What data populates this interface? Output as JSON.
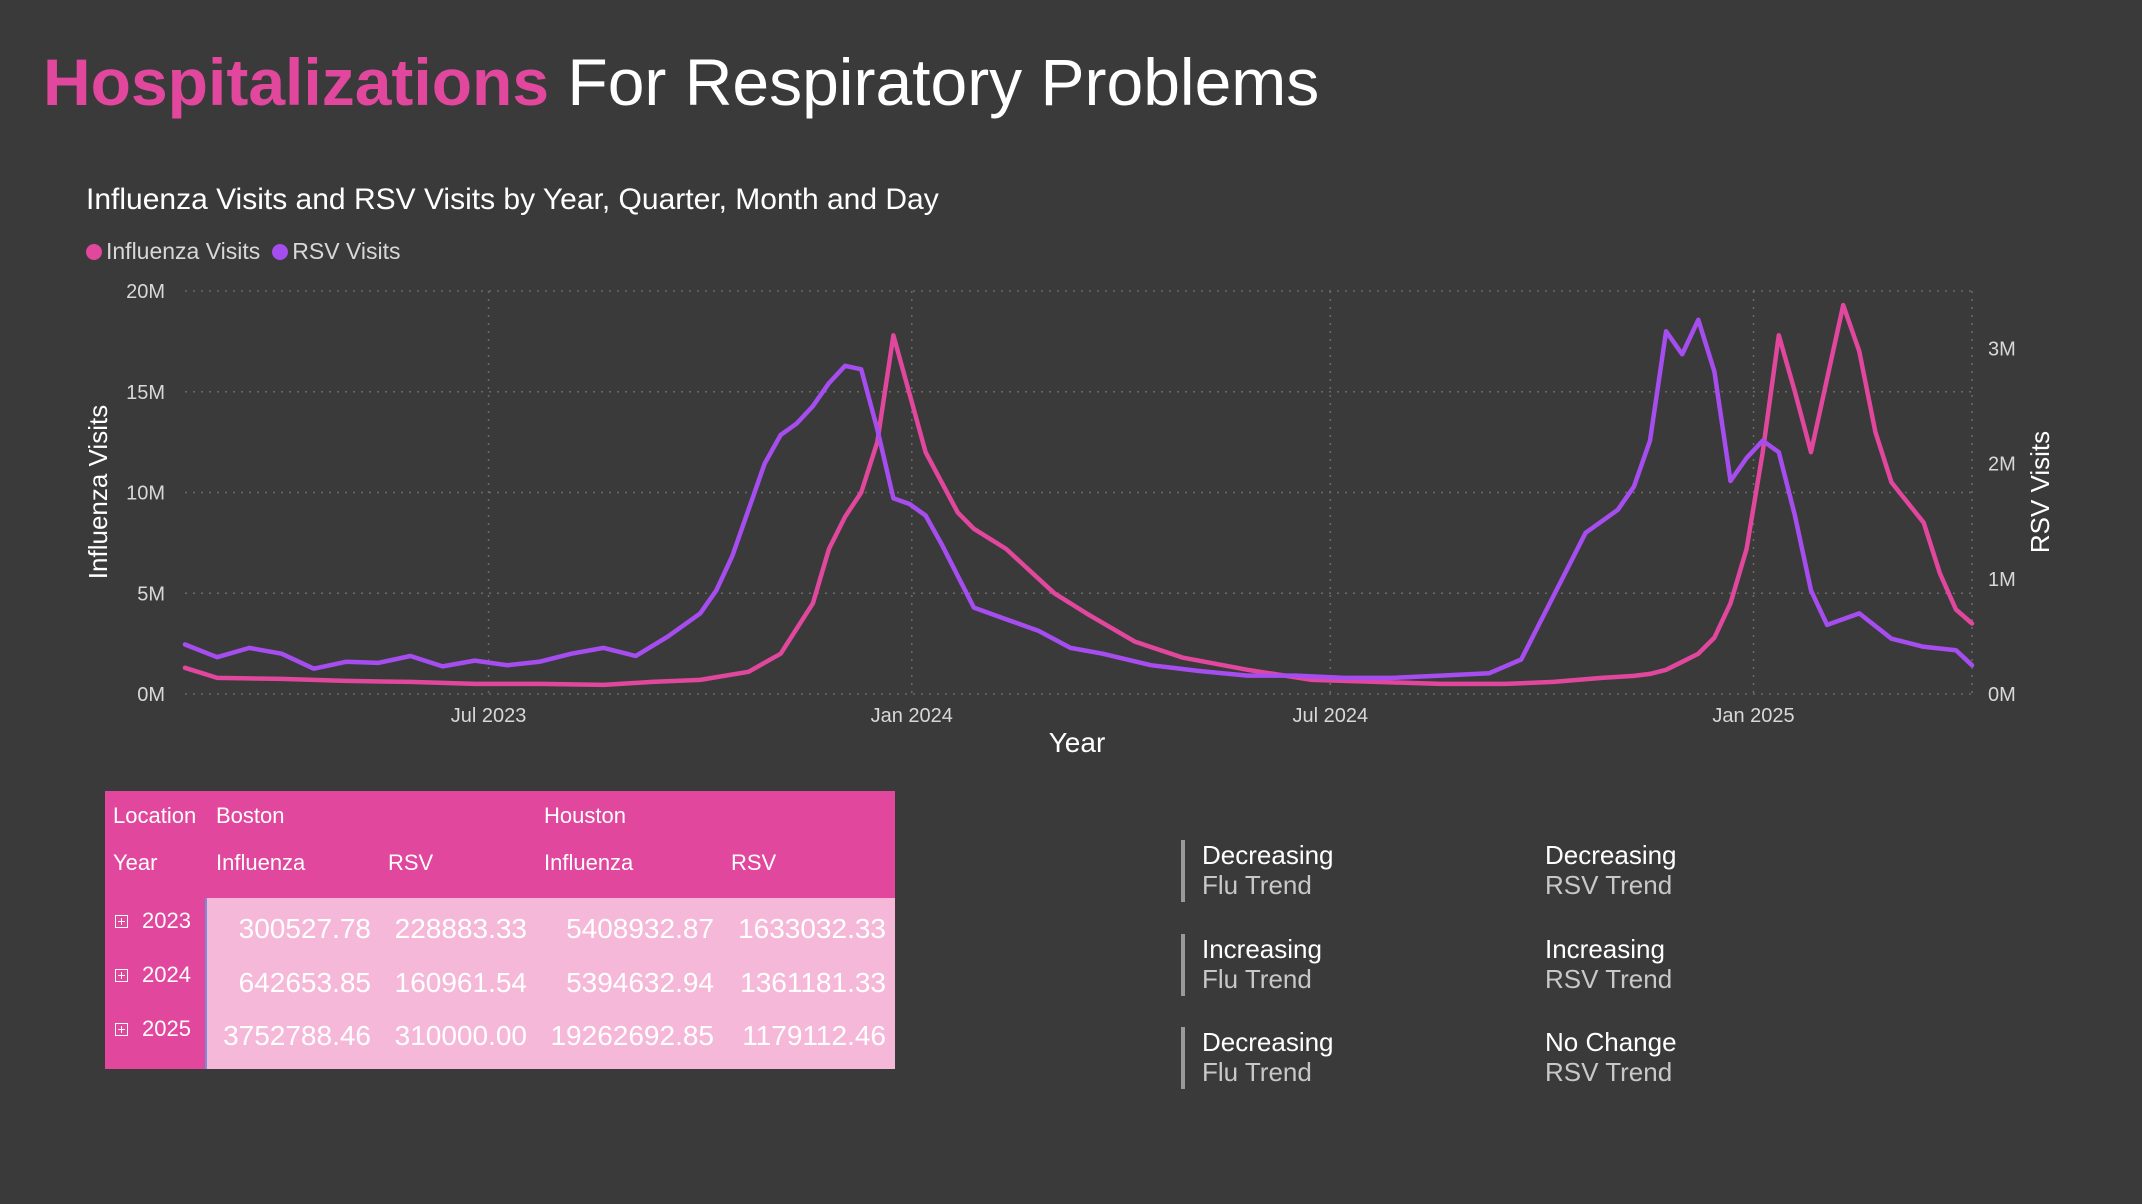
{
  "page_title": {
    "highlight": "Hospitalizations",
    "rest": " For Respiratory Problems"
  },
  "chart_data": {
    "type": "line",
    "title": "Influenza Visits and RSV Visits by Year, Quarter, Month and Day",
    "xlabel": "Year",
    "y_left_label": "Influenza Visits",
    "y_right_label": "RSV Visits",
    "x_tick_labels": [
      "Jul 2023",
      "Jan 2024",
      "Jul 2024",
      "Jan 2025"
    ],
    "x_range": [
      "2023-02-19",
      "2025-04-06"
    ],
    "x_ticks": [
      "2023-07-01",
      "2024-01-01",
      "2024-07-01",
      "2025-01-01"
    ],
    "y_left_ticks": [
      "0M",
      "5M",
      "10M",
      "15M",
      "20M"
    ],
    "y_left_range": [
      0,
      20000000
    ],
    "y_right_ticks": [
      "0M",
      "1M",
      "2M",
      "3M"
    ],
    "y_right_range": [
      0,
      3500000
    ],
    "grid": true,
    "legend_placement": "top-left",
    "series": [
      {
        "name": "Influenza Visits",
        "axis": "left",
        "color": "#e0479d",
        "x": [
          "2023-02-19",
          "2023-03-05",
          "2023-04-02",
          "2023-04-30",
          "2023-05-28",
          "2023-06-25",
          "2023-07-23",
          "2023-08-20",
          "2023-09-10",
          "2023-10-01",
          "2023-10-22",
          "2023-11-05",
          "2023-11-19",
          "2023-11-26",
          "2023-12-03",
          "2023-12-10",
          "2023-12-17",
          "2023-12-24",
          "2024-01-07",
          "2024-01-21",
          "2024-01-28",
          "2024-02-11",
          "2024-03-03",
          "2024-03-17",
          "2024-04-07",
          "2024-04-28",
          "2024-05-26",
          "2024-06-23",
          "2024-07-21",
          "2024-08-18",
          "2024-09-15",
          "2024-10-06",
          "2024-10-27",
          "2024-11-10",
          "2024-11-17",
          "2024-11-24",
          "2024-12-01",
          "2024-12-08",
          "2024-12-15",
          "2024-12-22",
          "2024-12-29",
          "2025-01-05",
          "2025-01-12",
          "2025-01-19",
          "2025-01-26",
          "2025-02-09",
          "2025-02-16",
          "2025-02-23",
          "2025-03-02",
          "2025-03-16",
          "2025-03-23",
          "2025-03-30",
          "2025-04-06"
        ],
        "values": [
          1300000,
          800000,
          750000,
          650000,
          600000,
          500000,
          500000,
          450000,
          600000,
          700000,
          1100000,
          2000000,
          4500000,
          7200000,
          8800000,
          10000000,
          12500000,
          17800000,
          12000000,
          9000000,
          8200000,
          7200000,
          5000000,
          4000000,
          2600000,
          1800000,
          1200000,
          700000,
          600000,
          500000,
          500000,
          600000,
          800000,
          900000,
          1000000,
          1200000,
          1600000,
          2000000,
          2800000,
          4500000,
          7200000,
          12000000,
          17800000,
          15000000,
          12000000,
          19300000,
          17000000,
          13000000,
          10500000,
          8500000,
          6000000,
          4200000,
          3500000
        ]
      },
      {
        "name": "RSV Visits",
        "axis": "right",
        "color": "#a64df0",
        "x": [
          "2023-02-19",
          "2023-03-05",
          "2023-03-19",
          "2023-04-02",
          "2023-04-16",
          "2023-04-30",
          "2023-05-14",
          "2023-05-28",
          "2023-06-11",
          "2023-06-25",
          "2023-07-09",
          "2023-07-23",
          "2023-08-06",
          "2023-08-20",
          "2023-09-03",
          "2023-09-17",
          "2023-10-01",
          "2023-10-08",
          "2023-10-15",
          "2023-10-22",
          "2023-10-29",
          "2023-11-05",
          "2023-11-12",
          "2023-11-19",
          "2023-11-26",
          "2023-12-03",
          "2023-12-10",
          "2023-12-17",
          "2023-12-24",
          "2023-12-31",
          "2024-01-07",
          "2024-01-14",
          "2024-01-28",
          "2024-02-11",
          "2024-02-25",
          "2024-03-10",
          "2024-03-24",
          "2024-04-14",
          "2024-05-05",
          "2024-05-26",
          "2024-06-16",
          "2024-07-07",
          "2024-07-28",
          "2024-08-18",
          "2024-09-08",
          "2024-09-22",
          "2024-10-06",
          "2024-10-20",
          "2024-10-27",
          "2024-11-03",
          "2024-11-10",
          "2024-11-17",
          "2024-11-24",
          "2024-12-01",
          "2024-12-08",
          "2024-12-15",
          "2024-12-22",
          "2024-12-29",
          "2025-01-05",
          "2025-01-12",
          "2025-01-19",
          "2025-01-26",
          "2025-02-02",
          "2025-02-16",
          "2025-03-02",
          "2025-03-16",
          "2025-03-30",
          "2025-04-06"
        ],
        "values": [
          430000,
          320000,
          400000,
          350000,
          220000,
          280000,
          270000,
          330000,
          240000,
          290000,
          250000,
          280000,
          350000,
          400000,
          330000,
          500000,
          700000,
          900000,
          1200000,
          1600000,
          2000000,
          2250000,
          2350000,
          2500000,
          2700000,
          2850000,
          2820000,
          2300000,
          1700000,
          1650000,
          1550000,
          1300000,
          750000,
          650000,
          550000,
          400000,
          350000,
          250000,
          200000,
          160000,
          160000,
          140000,
          140000,
          160000,
          180000,
          300000,
          850000,
          1400000,
          1500000,
          1600000,
          1800000,
          2200000,
          3150000,
          2950000,
          3250000,
          2800000,
          1850000,
          2050000,
          2200000,
          2100000,
          1550000,
          900000,
          600000,
          700000,
          480000,
          410000,
          380000,
          250000
        ]
      }
    ]
  },
  "matrix": {
    "header_row1": {
      "location_label": "Location",
      "col_groups": [
        "Boston",
        "Houston"
      ]
    },
    "header_row2": {
      "year_label": "Year",
      "cols": [
        "Influenza",
        "RSV",
        "Influenza",
        "RSV"
      ]
    },
    "rows": [
      {
        "year": "2023",
        "values": [
          "300527.78",
          "228883.33",
          "5408932.87",
          "1633032.33"
        ]
      },
      {
        "year": "2024",
        "values": [
          "642653.85",
          "160961.54",
          "5394632.94",
          "1361181.33"
        ]
      },
      {
        "year": "2025",
        "values": [
          "3752788.46",
          "310000.00",
          "19262692.85",
          "1179112.46"
        ]
      }
    ]
  },
  "trends": [
    {
      "status": "Decreasing",
      "label": "Flu Trend"
    },
    {
      "status": "Decreasing",
      "label": "RSV Trend"
    },
    {
      "status": "Increasing",
      "label": "Flu Trend"
    },
    {
      "status": "Increasing",
      "label": "RSV Trend"
    },
    {
      "status": "Decreasing",
      "label": "Flu Trend"
    },
    {
      "status": "No Change",
      "label": "RSV Trend"
    }
  ]
}
